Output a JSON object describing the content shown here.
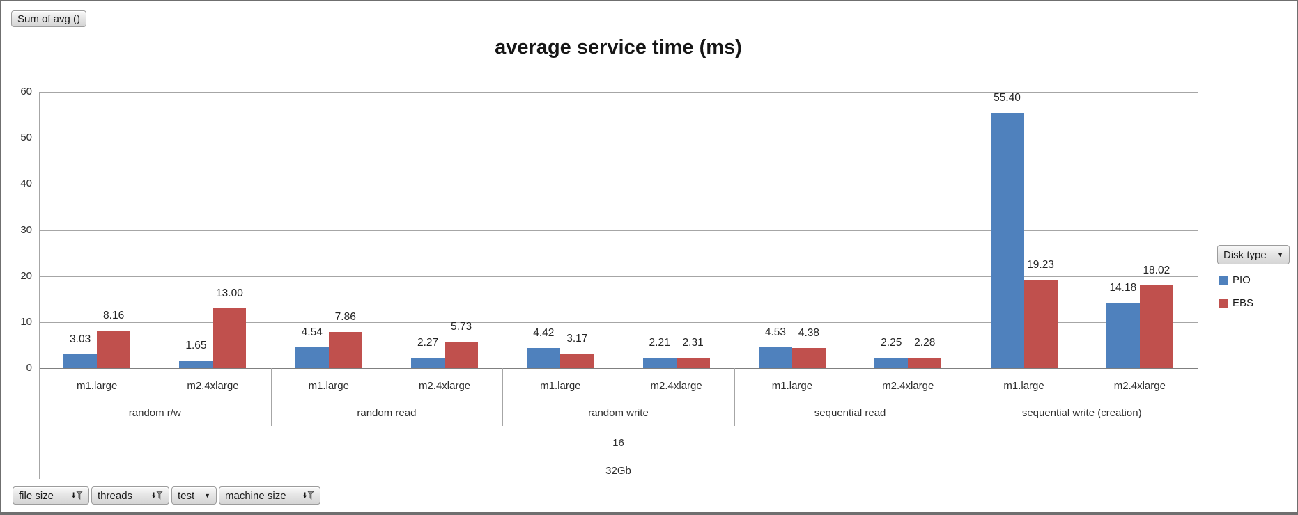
{
  "window": {
    "background": "#FFFFFF",
    "frame_color": "#6F6F6F"
  },
  "pivot_buttons": {
    "value_button_label": "Sum of avg ()",
    "legend_button_label": "Disk type",
    "axis_buttons": [
      {
        "label": "file size",
        "icon": "filter-funnel-icon"
      },
      {
        "label": "threads",
        "icon": "filter-funnel-icon"
      },
      {
        "label": "test",
        "icon": "dropdown-arrow-icon"
      },
      {
        "label": "machine size",
        "icon": "filter-funnel-icon"
      }
    ]
  },
  "chart_data": {
    "type": "bar",
    "title": "average service time (ms)",
    "xlabel": "",
    "ylabel": "",
    "ylim": [
      0,
      60
    ],
    "yticks": [
      0,
      10,
      20,
      30,
      40,
      50,
      60
    ],
    "grid": true,
    "grid_color": "#A6A6A6",
    "axis_color": "#808080",
    "value_labels": true,
    "value_label_decimals": 2,
    "legend_position": "right",
    "legend_title": "Disk type",
    "group_labels": [
      "random r/w",
      "random read",
      "random write",
      "sequential read",
      "sequential write (creation)"
    ],
    "subcategories": [
      "m1.large",
      "m2.4xlarge"
    ],
    "outer_axis_labels": [
      "16",
      "32Gb"
    ],
    "series": [
      {
        "name": "PIO",
        "color": "#4F81BD",
        "values": [
          [
            3.03,
            1.65
          ],
          [
            4.54,
            2.27
          ],
          [
            4.42,
            2.21
          ],
          [
            4.53,
            2.25
          ],
          [
            55.4,
            14.18
          ]
        ]
      },
      {
        "name": "EBS",
        "color": "#C0504D",
        "values": [
          [
            8.16,
            13.0
          ],
          [
            7.86,
            5.73
          ],
          [
            3.17,
            2.31
          ],
          [
            4.38,
            2.28
          ],
          [
            19.23,
            18.02
          ]
        ]
      }
    ]
  }
}
